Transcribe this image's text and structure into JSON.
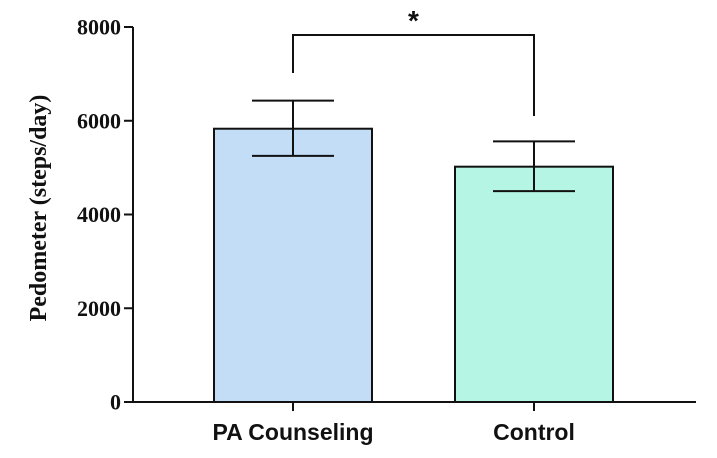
{
  "chart_data": {
    "type": "bar",
    "categories": [
      "PA Counseling",
      "Control"
    ],
    "values": [
      5830,
      5020
    ],
    "errors": [
      {
        "low": 5250,
        "high": 6430
      },
      {
        "low": 4500,
        "high": 5560
      }
    ],
    "colors": [
      "#c3ddf7",
      "#b4f5e4"
    ],
    "ylabel": "Pedometer (steps/day)",
    "xlabel": "",
    "title": "",
    "ylim": [
      0,
      8000
    ],
    "yticks": [
      {
        "value": 0,
        "label": "0"
      },
      {
        "value": 2000,
        "label": "2000"
      },
      {
        "value": 4000,
        "label": "4000"
      },
      {
        "value": 6000,
        "label": "6000"
      },
      {
        "value": 8000,
        "label": "8000"
      }
    ],
    "significance": {
      "label": "*",
      "between": [
        0,
        1
      ],
      "level": 8000
    },
    "grid": false,
    "legend": "none"
  }
}
